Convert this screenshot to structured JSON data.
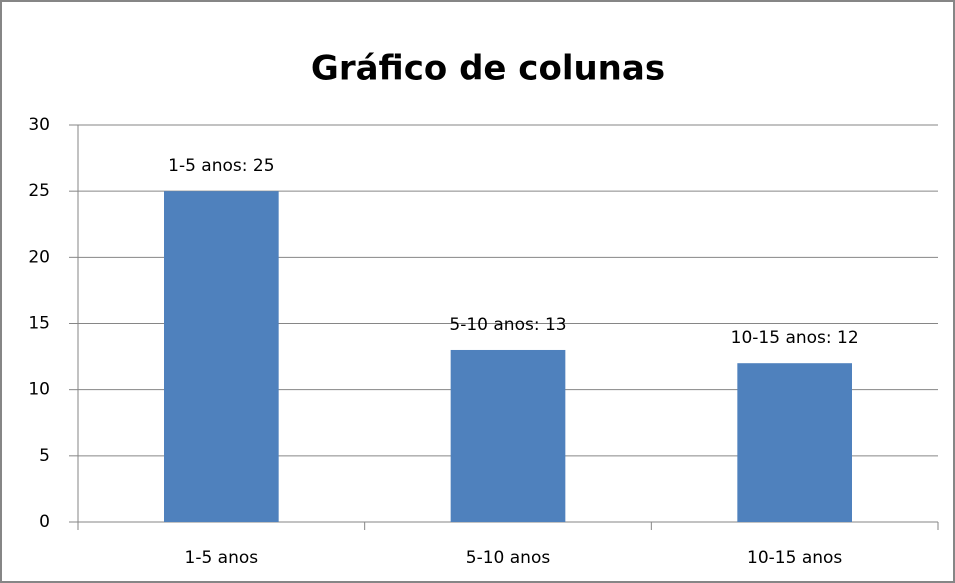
{
  "chart_data": {
    "type": "bar",
    "title": "Gráfico de colunas",
    "categories": [
      "1-5 anos",
      "5-10 anos",
      "10-15 anos"
    ],
    "values": [
      25,
      13,
      12
    ],
    "value_labels": [
      "1-5 anos: 25",
      "5-10 anos: 13",
      "10-15 anos: 12"
    ],
    "color": "#4f81bd",
    "ylim": [
      0,
      30
    ],
    "yticks": [
      0,
      5,
      10,
      15,
      20,
      25,
      30
    ],
    "grid": true
  }
}
